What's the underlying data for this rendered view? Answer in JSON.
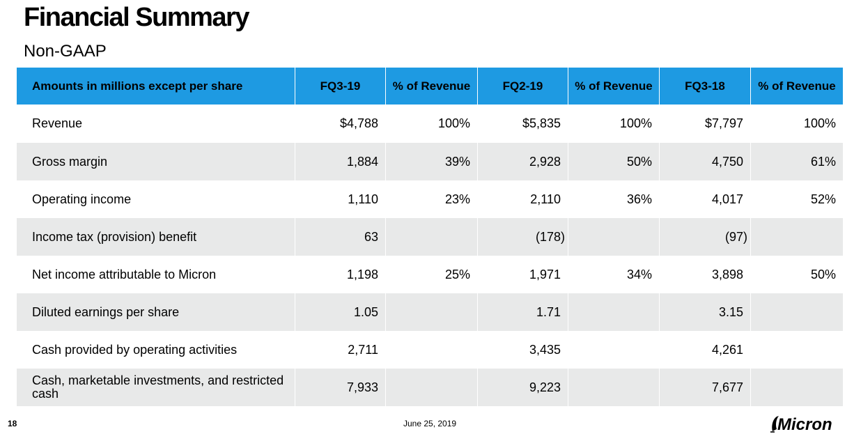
{
  "header": {
    "title": "Financial Summary",
    "subtitle": "Non-GAAP"
  },
  "table": {
    "columns": [
      "Amounts in millions except per share",
      "FQ3-19",
      "% of Revenue",
      "FQ2-19",
      "% of Revenue",
      "FQ3-18",
      "% of Revenue"
    ],
    "rows": [
      {
        "label": "Revenue",
        "values": [
          "$4,788",
          "100%",
          "$5,835",
          "100%",
          "$7,797",
          "100%"
        ]
      },
      {
        "label": "Gross margin",
        "values": [
          "1,884",
          "39%",
          "2,928",
          "50%",
          "4,750",
          "61%"
        ]
      },
      {
        "label": "Operating income",
        "values": [
          "1,110",
          "23%",
          "2,110",
          "36%",
          "4,017",
          "52%"
        ]
      },
      {
        "label": "Income tax (provision) benefit",
        "values": [
          "63",
          "",
          "(178)",
          "",
          "(97)",
          ""
        ]
      },
      {
        "label": "Net income attributable to Micron",
        "values": [
          "1,198",
          "25%",
          "1,971",
          "34%",
          "3,898",
          "50%"
        ]
      },
      {
        "label": "Diluted earnings per share",
        "values": [
          "1.05",
          "",
          "1.71",
          "",
          "3.15",
          ""
        ]
      },
      {
        "label": "Cash provided by operating activities",
        "values": [
          "2,711",
          "",
          "3,435",
          "",
          "4,261",
          ""
        ]
      },
      {
        "label": "Cash, marketable investments, and restricted cash",
        "values": [
          "7,933",
          "",
          "9,223",
          "",
          "7,677",
          ""
        ]
      }
    ]
  },
  "footer": {
    "page_number": "18",
    "date": "June 25, 2019",
    "logo_text": "Micron",
    "logo_icon": "micron-logo-icon"
  },
  "colors": {
    "header_bg": "#1e9ae2",
    "stripe": "#e8e9e9"
  }
}
